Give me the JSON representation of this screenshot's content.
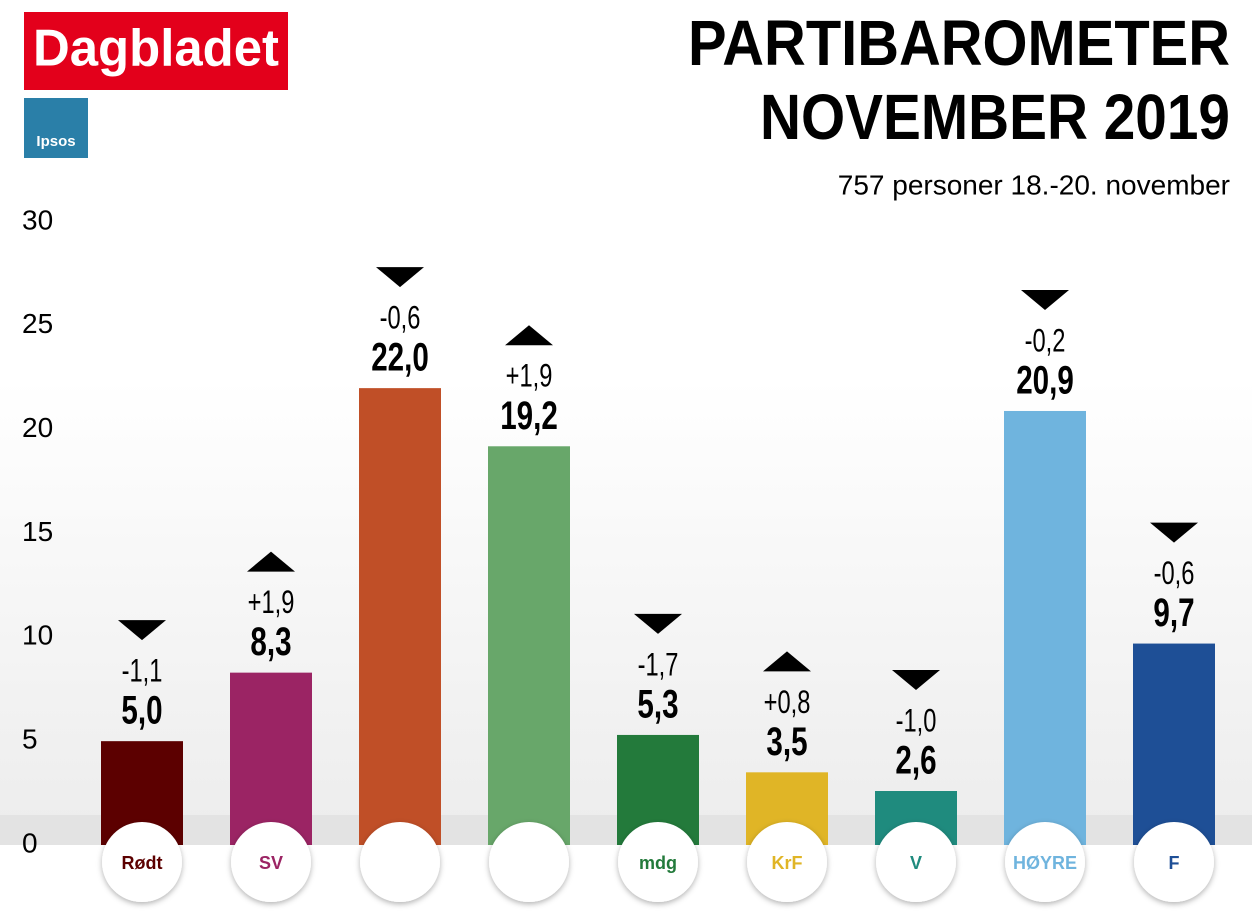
{
  "chart_data": {
    "type": "bar",
    "brand": "Dagbladet",
    "partner": "Ipsos",
    "title": [
      "PARTIBAROMETER",
      "NOVEMBER 2019"
    ],
    "subtitle": "757 personer 18.-20. november",
    "categories": [
      "Rødt",
      "SV",
      null,
      null,
      "mdg",
      "KrF",
      "V",
      "HØYRE",
      "F"
    ],
    "values": [
      5.0,
      8.3,
      22.0,
      19.2,
      5.3,
      3.5,
      2.6,
      20.9,
      9.7
    ],
    "value_labels": [
      "5,0",
      "8,3",
      "22,0",
      "19,2",
      "5,3",
      "3,5",
      "2,6",
      "20,9",
      "9,7"
    ],
    "changes": [
      -1.1,
      1.9,
      -0.6,
      1.9,
      -1.7,
      0.8,
      -1.0,
      -0.2,
      -0.6
    ],
    "change_labels": [
      "-1,1",
      "+1,9",
      "-0,6",
      "+1,9",
      "-1,7",
      "+0,8",
      "-1,0",
      "-0,2",
      "-0,6"
    ],
    "colors": [
      "#5c0000",
      "#9b2464",
      "#c04f27",
      "#68a76a",
      "#237a3b",
      "#e0b526",
      "#1f8b7e",
      "#6fb4de",
      "#1e4f96"
    ],
    "ylim": [
      0,
      30
    ],
    "yticks": [
      0,
      5,
      10,
      15,
      20,
      25,
      30
    ],
    "grid": false
  }
}
